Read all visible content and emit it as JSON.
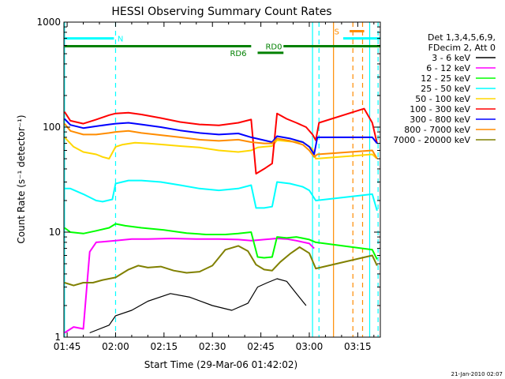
{
  "chart_data": {
    "type": "line",
    "title": "HESSI Observing Summary Count Rates",
    "xlabel": "Start Time (29-Mar-06 01:42:02)",
    "ylabel": "Count Rate (s⁻¹ detector⁻¹)",
    "footer": "21-Jan-2010 02:07",
    "y_scale": "log",
    "ylim": [
      1,
      1000
    ],
    "xlim": [
      104,
      202
    ],
    "x_unit": "minutes after 00:00 UT on 29-Mar-06",
    "grid": false,
    "legend_position": "right",
    "legend_header": [
      "Det 1,3,4,5,6,9,",
      "FDecim 2, Att 0"
    ],
    "x_ticks": [
      {
        "v": 105,
        "label": "01:45"
      },
      {
        "v": 120,
        "label": "02:00"
      },
      {
        "v": 135,
        "label": "02:15"
      },
      {
        "v": 150,
        "label": "02:30"
      },
      {
        "v": 165,
        "label": "02:45"
      },
      {
        "v": 180,
        "label": "03:00"
      },
      {
        "v": 195,
        "label": "03:15"
      }
    ],
    "y_ticks": [
      {
        "v": 1,
        "label": "1"
      },
      {
        "v": 10,
        "label": "10"
      },
      {
        "v": 100,
        "label": "100"
      },
      {
        "v": 1000,
        "label": "1000"
      }
    ],
    "series": [
      {
        "name": "3 - 6 keV",
        "color": "#000000",
        "x": [
          112,
          118,
          120,
          125,
          130,
          137,
          143,
          150,
          156,
          161,
          164,
          167,
          170,
          173,
          176,
          179
        ],
        "y": [
          1.1,
          1.3,
          1.6,
          1.8,
          2.2,
          2.6,
          2.4,
          2.0,
          1.8,
          2.1,
          3.0,
          3.3,
          3.6,
          3.4,
          2.6,
          2.0
        ]
      },
      {
        "name": "6 - 12 keV",
        "color": "#ff00ff",
        "x": [
          104.2,
          107,
          110,
          112,
          114,
          120,
          125,
          130,
          137,
          145,
          152,
          158,
          162,
          164,
          166,
          170,
          173,
          176,
          180,
          181.5
        ],
        "y": [
          1.1,
          1.25,
          1.2,
          6.5,
          8.0,
          8.3,
          8.6,
          8.6,
          8.7,
          8.6,
          8.6,
          8.5,
          8.3,
          8.4,
          8.5,
          8.7,
          8.6,
          8.3,
          7.8,
          7.0
        ]
      },
      {
        "name": "12 - 25 keV",
        "color": "#00ff00",
        "x": [
          104.2,
          106,
          110,
          114,
          118,
          120,
          123,
          128,
          135,
          142,
          148,
          154,
          158,
          162,
          164,
          166,
          168.5,
          170,
          173,
          176,
          180,
          182,
          199.5,
          201
        ],
        "y": [
          11.0,
          10.0,
          9.7,
          10.3,
          11.0,
          12.0,
          11.5,
          11.0,
          10.5,
          9.8,
          9.5,
          9.5,
          9.7,
          10.0,
          5.8,
          5.7,
          5.8,
          9.0,
          8.8,
          9.0,
          8.5,
          8.0,
          6.8,
          5.5
        ]
      },
      {
        "name": "25 - 50 keV",
        "color": "#00ffff",
        "x": [
          104.2,
          106,
          110,
          114,
          116,
          119,
          120,
          124,
          128,
          134,
          140,
          146,
          152,
          158,
          162,
          163.5,
          166,
          168.5,
          170,
          174,
          178,
          180,
          182,
          199.5,
          201
        ],
        "y": [
          26.0,
          26.0,
          23.0,
          20.0,
          19.5,
          20.5,
          29.0,
          31.0,
          31.0,
          30.0,
          28.0,
          26.0,
          25.0,
          26.0,
          28.0,
          17.0,
          17.0,
          17.5,
          30.0,
          29.0,
          27.0,
          25.0,
          20.0,
          23.0,
          16.0
        ]
      },
      {
        "name": "50 - 100 keV",
        "color": "#ffd700",
        "x": [
          104.2,
          107,
          110,
          114,
          116,
          118,
          120,
          122,
          126,
          130,
          135,
          140,
          146,
          152,
          158,
          162,
          164,
          166,
          168.5,
          170,
          174,
          178,
          181,
          182,
          199.5,
          201
        ],
        "y": [
          80.0,
          65.0,
          58.0,
          55.0,
          52.0,
          50.0,
          65.0,
          68.0,
          71.0,
          70.0,
          68.0,
          66.0,
          64.0,
          60.0,
          58.0,
          60.0,
          64.0,
          65.0,
          66.0,
          75.0,
          73.0,
          72.0,
          62.0,
          50.0,
          55.0,
          50.0
        ]
      },
      {
        "name": "100 - 300 keV",
        "color": "#ff0000",
        "x": [
          104.2,
          106,
          110,
          114,
          118,
          120,
          124,
          128,
          134,
          140,
          146,
          152,
          158,
          162,
          163.5,
          166,
          168.5,
          170,
          173,
          176,
          179,
          181,
          182,
          183,
          197,
          199.5,
          201
        ],
        "y": [
          140.0,
          115.0,
          108.0,
          118.0,
          130.0,
          135.0,
          137.0,
          132.0,
          122.0,
          112.0,
          106.0,
          104.0,
          110.0,
          118.0,
          36.0,
          40.0,
          45.0,
          135.0,
          120.0,
          110.0,
          100.0,
          85.0,
          75.0,
          110.0,
          150.0,
          110.0,
          70.0
        ]
      },
      {
        "name": "300 - 800 keV",
        "color": "#0000ff",
        "x": [
          104.2,
          106,
          110,
          114,
          118,
          120,
          124,
          128,
          134,
          140,
          146,
          152,
          158,
          162,
          166,
          168.5,
          170,
          174,
          178,
          180,
          181.5,
          182.5,
          199.5,
          201
        ],
        "y": [
          120.0,
          105.0,
          98.0,
          102.0,
          106.0,
          108.0,
          110.0,
          106.0,
          100.0,
          93.0,
          88.0,
          85.0,
          87.0,
          80.0,
          75.0,
          72.0,
          82.0,
          78.0,
          72.0,
          65.0,
          55.0,
          80.0,
          80.0,
          70.0
        ]
      },
      {
        "name": "800 - 7000 keV",
        "color": "#ff8c00",
        "x": [
          104.2,
          106,
          110,
          114,
          118,
          120,
          124,
          128,
          134,
          140,
          146,
          152,
          158,
          162,
          166,
          168.5,
          170,
          174,
          178,
          180,
          181.5,
          182.5,
          199.5,
          201
        ],
        "y": [
          108.0,
          92.0,
          85.0,
          85.0,
          88.0,
          90.0,
          92.0,
          88.0,
          84.0,
          80.0,
          76.0,
          74.0,
          76.0,
          72.0,
          70.0,
          70.0,
          78.0,
          74.0,
          68.0,
          60.0,
          52.0,
          55.0,
          60.0,
          50.0
        ]
      },
      {
        "name": "7000 - 20000 keV",
        "color": "#808000",
        "x": [
          104.2,
          107,
          110,
          113,
          116,
          120,
          124,
          127,
          130,
          134,
          138,
          142,
          146,
          150,
          154,
          158,
          161,
          163.5,
          166,
          168.5,
          171,
          174,
          177,
          180,
          182,
          199.5,
          201
        ],
        "y": [
          3.3,
          3.1,
          3.3,
          3.3,
          3.5,
          3.7,
          4.4,
          4.8,
          4.6,
          4.7,
          4.3,
          4.1,
          4.2,
          4.8,
          6.8,
          7.4,
          6.6,
          4.9,
          4.4,
          4.3,
          5.2,
          6.2,
          7.2,
          6.3,
          4.5,
          6.0,
          4.8
        ]
      }
    ],
    "flag_bars": [
      {
        "label": "N",
        "color": "#00ffff",
        "start": 104.2,
        "end": 119.5,
        "label_at": 121.5,
        "level": 700
      },
      {
        "label": "S",
        "color": "#00ffff",
        "start": 190.5,
        "end": 202,
        "level": 700
      },
      {
        "label": "S",
        "color": "#ff8c00",
        "start": 192.5,
        "end": 197,
        "label_at": 188.5,
        "level": 820
      },
      {
        "label": "RD0",
        "color": "#008000",
        "start": 104.2,
        "end": 162,
        "label_at": 169,
        "level": 590
      },
      {
        "label": "RD0",
        "color": "#008000",
        "start": 172,
        "end": 202,
        "level": 590
      },
      {
        "label": "RD6",
        "color": "#008000",
        "start": 164,
        "end": 172,
        "label_at": 158,
        "level": 510
      }
    ],
    "vertical_markers": [
      {
        "x": 104.2,
        "color": "#00ffff",
        "style": "solid"
      },
      {
        "x": 120,
        "color": "#00ffff",
        "style": "dashed"
      },
      {
        "x": 181,
        "color": "#00ffff",
        "style": "solid"
      },
      {
        "x": 183,
        "color": "#00ffff",
        "style": "dashed"
      },
      {
        "x": 187.5,
        "color": "#ff8c00",
        "style": "solid"
      },
      {
        "x": 193.5,
        "color": "#ff8c00",
        "style": "dashed"
      },
      {
        "x": 196.5,
        "color": "#ff8c00",
        "style": "dashed"
      },
      {
        "x": 198.7,
        "color": "#00ffff",
        "style": "solid"
      },
      {
        "x": 201.3,
        "color": "#00ffff",
        "style": "dashed"
      }
    ]
  }
}
